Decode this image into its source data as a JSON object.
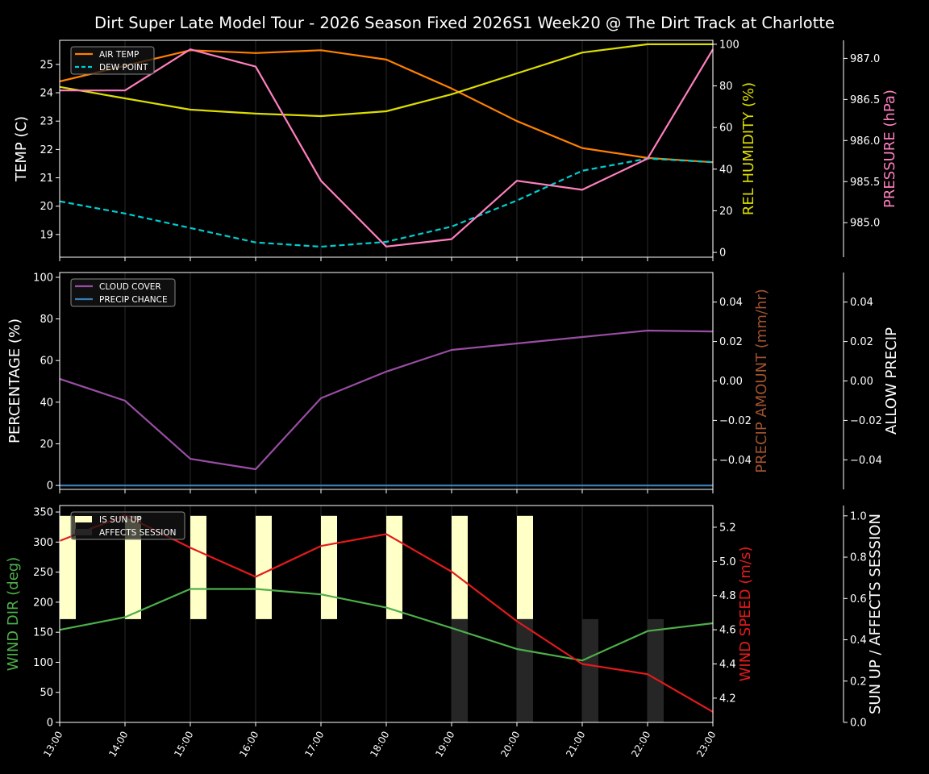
{
  "title": "Dirt Super Late Model Tour - 2026 Season Fixed 2026S1 Week20 @ The Dirt Track at Charlotte",
  "chart_data": [
    {
      "type": "line",
      "x": [
        "13:00",
        "14:00",
        "15:00",
        "16:00",
        "17:00",
        "18:00",
        "19:00",
        "20:00",
        "21:00",
        "22:00",
        "23:00"
      ],
      "axes": {
        "left": {
          "label": "TEMP (C)",
          "color": "#ffffff",
          "ylim": [
            18.2,
            25.85
          ],
          "ticks": [
            19,
            20,
            21,
            22,
            23,
            24,
            25
          ]
        },
        "right1": {
          "label": "REL HUMIDITY (%)",
          "color": "#dddd00",
          "ylim": [
            -2.3,
            101.9
          ],
          "ticks": [
            0,
            20,
            40,
            60,
            80,
            100
          ]
        },
        "right2": {
          "label": "PRESSURE (hPa)",
          "color": "#ff7fbf",
          "ylim": [
            984.58,
            987.22
          ],
          "ticks": [
            "985.0",
            "985.5",
            "986.0",
            "986.5",
            "987.0"
          ]
        }
      },
      "legend": {
        "placement": "upper-left",
        "entries": [
          "AIR TEMP",
          "DEW POINT"
        ]
      },
      "series": [
        {
          "name": "AIR TEMP",
          "axis": "left",
          "color": "#ff8000",
          "dash": false,
          "values": [
            24.4,
            24.95,
            25.5,
            25.4,
            25.5,
            25.17,
            24.15,
            23.0,
            22.05,
            21.7,
            21.55
          ]
        },
        {
          "name": "DEW POINT",
          "axis": "left",
          "color": "#00ced1",
          "dash": true,
          "values": [
            20.17,
            19.74,
            19.23,
            18.72,
            18.57,
            18.74,
            19.28,
            20.2,
            21.25,
            21.68,
            21.55
          ]
        },
        {
          "axis": "right1",
          "color": "#dddd00",
          "dash": false,
          "values": [
            79.5,
            74,
            68.6,
            66.7,
            65.5,
            67.8,
            76,
            86,
            96,
            100,
            100
          ]
        },
        {
          "axis": "right2",
          "color": "#ff7fbf",
          "dash": false,
          "values": [
            986.61,
            986.61,
            987.11,
            986.9,
            985.51,
            984.71,
            984.8,
            985.51,
            985.4,
            985.78,
            987.11
          ]
        }
      ]
    },
    {
      "type": "line",
      "x": [
        "13:00",
        "14:00",
        "15:00",
        "16:00",
        "17:00",
        "18:00",
        "19:00",
        "20:00",
        "21:00",
        "22:00",
        "23:00"
      ],
      "axes": {
        "left": {
          "label": "PERCENTAGE (%)",
          "color": "#ffffff",
          "ylim": [
            -1.9,
            102.3
          ],
          "ticks": [
            0,
            20,
            40,
            60,
            80,
            100
          ]
        },
        "right1": {
          "label": "PRECIP AMOUNT (mm/hr)",
          "color": "#a0522d",
          "ylim": [
            -0.055,
            0.055
          ],
          "ticks": [
            "−0.04",
            "−0.02",
            "0.00",
            "0.02",
            "0.04"
          ]
        },
        "right2": {
          "label": "ALLOW PRECIP",
          "color": "#ffffff",
          "ylim": [
            -0.055,
            0.055
          ],
          "ticks": [
            "−0.04",
            "−0.02",
            "0.00",
            "0.02",
            "0.04"
          ]
        }
      },
      "legend": {
        "placement": "upper-left",
        "entries": [
          "CLOUD COVER",
          "PRECIP CHANCE"
        ]
      },
      "series": [
        {
          "name": "CLOUD COVER",
          "axis": "left",
          "color": "#984ea3",
          "dash": false,
          "values": [
            51.2,
            40.7,
            12.8,
            7.8,
            41.9,
            54.7,
            65.1,
            68.2,
            71.3,
            74.4,
            74
          ]
        },
        {
          "name": "PRECIP CHANCE",
          "axis": "left",
          "color": "#377eb8",
          "dash": false,
          "values": [
            0,
            0,
            0,
            0,
            0,
            0,
            0,
            0,
            0,
            0,
            0
          ]
        }
      ]
    },
    {
      "type": "line",
      "x": [
        "13:00",
        "14:00",
        "15:00",
        "16:00",
        "17:00",
        "18:00",
        "19:00",
        "20:00",
        "21:00",
        "22:00",
        "23:00"
      ],
      "axes": {
        "left": {
          "label": "WIND DIR (deg)",
          "color": "#4daf4a",
          "ylim": [
            0,
            360.8
          ],
          "ticks": [
            0,
            50,
            100,
            150,
            200,
            250,
            300,
            350
          ]
        },
        "right1": {
          "label": "WIND SPEED (m/s)",
          "color": "#e41a1c",
          "ylim": [
            4.058,
            5.327
          ],
          "ticks": [
            "4.2",
            "4.4",
            "4.6",
            "4.8",
            "5.0",
            "5.2"
          ]
        },
        "right2": {
          "label": "SUN UP / AFFECTS SESSION",
          "color": "#ffffff",
          "ylim": [
            0,
            1.05
          ],
          "ticks": [
            "0.0",
            "0.2",
            "0.4",
            "0.6",
            "0.8",
            "1.0"
          ]
        }
      },
      "legend": {
        "placement": "upper-left",
        "entries": [
          "IS SUN UP",
          "AFFECTS SESSION"
        ]
      },
      "bars": [
        {
          "name": "IS SUN UP",
          "axis": "right2",
          "color": "#ffffc8",
          "base": 0.5,
          "height": 0.5,
          "values": [
            1,
            1,
            1,
            1,
            1,
            1,
            1,
            1,
            0,
            0,
            0
          ]
        },
        {
          "name": "AFFECTS SESSION",
          "axis": "right2",
          "color": "#262626",
          "base": 0,
          "height": 0.5,
          "values": [
            0,
            0,
            0,
            0,
            0,
            0,
            1,
            1,
            1,
            1,
            0
          ]
        }
      ],
      "series": [
        {
          "axis": "left",
          "color": "#4daf4a",
          "dash": false,
          "values": [
            154,
            175,
            222,
            222,
            213,
            191,
            157,
            122,
            103,
            152,
            165
          ]
        },
        {
          "axis": "right1",
          "color": "#e41a1c",
          "dash": false,
          "values": [
            5.12,
            5.27,
            5.08,
            4.91,
            5.09,
            5.16,
            4.94,
            4.65,
            4.4,
            4.34,
            4.12
          ]
        }
      ]
    }
  ]
}
